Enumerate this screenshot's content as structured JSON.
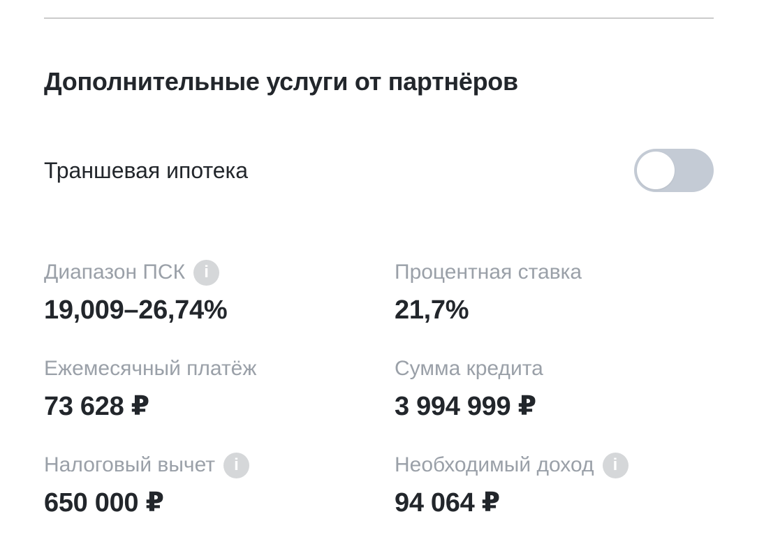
{
  "section": {
    "title": "Дополнительные услуги от партнёров"
  },
  "toggle_row": {
    "label": "Траншевая ипотека",
    "state": "off"
  },
  "stats": [
    {
      "label": "Диапазон ПСК",
      "value": "19,009–26,74%",
      "has_info": true
    },
    {
      "label": "Процентная ставка",
      "value": "21,7%",
      "has_info": false
    },
    {
      "label": "Ежемесячный платёж",
      "value": "73 628 ₽",
      "has_info": false
    },
    {
      "label": "Сумма кредита",
      "value": "3 994 999 ₽",
      "has_info": false
    },
    {
      "label": "Налоговый вычет",
      "value": "650 000 ₽",
      "has_info": true
    },
    {
      "label": "Необходимый доход",
      "value": "94 064 ₽",
      "has_info": true
    }
  ],
  "icons": {
    "info": "i"
  },
  "colors": {
    "text_dark": "#22262b",
    "label_gray": "#9aa0a8",
    "divider": "#cbcbcb",
    "toggle_track_off": "#c4cbd5",
    "info_circle": "#d5d7d9"
  }
}
